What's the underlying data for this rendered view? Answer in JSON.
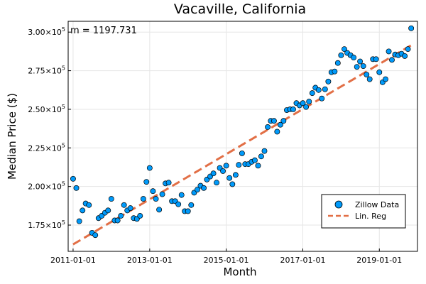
{
  "chart_data": {
    "type": "scatter",
    "title": "Vacaville, California",
    "xlabel": "Month",
    "ylabel": "Median Price ($)",
    "annotation": "m = 1197.731",
    "x_ticks": [
      "2011-01-01",
      "2013-01-01",
      "2015-01-01",
      "2017-01-01",
      "2019-01-01"
    ],
    "y_ticks": [
      {
        "value": 175000,
        "mantissa": "1.75",
        "exp": "5"
      },
      {
        "value": 200000,
        "mantissa": "2.00",
        "exp": "5"
      },
      {
        "value": 225000,
        "mantissa": "2.25",
        "exp": "5"
      },
      {
        "value": 250000,
        "mantissa": "2.50",
        "exp": "5"
      },
      {
        "value": 275000,
        "mantissa": "2.75",
        "exp": "5"
      },
      {
        "value": 300000,
        "mantissa": "3.00",
        "exp": "5"
      }
    ],
    "xlim": [
      "2010-11-15",
      "2019-12-31"
    ],
    "ylim": [
      158000,
      307000
    ],
    "grid": true,
    "legend_position": "bottom-right",
    "series": [
      {
        "name": "Zillow Data",
        "kind": "scatter",
        "color": "#009AFA",
        "x": [
          "2011-01-01",
          "2011-02-01",
          "2011-03-01",
          "2011-04-01",
          "2011-05-01",
          "2011-06-01",
          "2011-07-01",
          "2011-08-01",
          "2011-09-01",
          "2011-10-01",
          "2011-11-01",
          "2011-12-01",
          "2012-01-01",
          "2012-02-01",
          "2012-03-01",
          "2012-04-01",
          "2012-05-01",
          "2012-06-01",
          "2012-07-01",
          "2012-08-01",
          "2012-09-01",
          "2012-10-01",
          "2012-11-01",
          "2012-12-01",
          "2013-01-01",
          "2013-02-01",
          "2013-03-01",
          "2013-04-01",
          "2013-05-01",
          "2013-06-01",
          "2013-07-01",
          "2013-08-01",
          "2013-09-01",
          "2013-10-01",
          "2013-11-01",
          "2013-12-01",
          "2014-01-01",
          "2014-02-01",
          "2014-03-01",
          "2014-04-01",
          "2014-05-01",
          "2014-06-01",
          "2014-07-01",
          "2014-08-01",
          "2014-09-01",
          "2014-10-01",
          "2014-11-01",
          "2014-12-01",
          "2015-01-01",
          "2015-02-01",
          "2015-03-01",
          "2015-04-01",
          "2015-05-01",
          "2015-06-01",
          "2015-07-01",
          "2015-08-01",
          "2015-09-01",
          "2015-10-01",
          "2015-11-01",
          "2015-12-01",
          "2016-01-01",
          "2016-02-01",
          "2016-03-01",
          "2016-04-01",
          "2016-05-01",
          "2016-06-01",
          "2016-07-01",
          "2016-08-01",
          "2016-09-01",
          "2016-10-01",
          "2016-11-01",
          "2016-12-01",
          "2017-01-01",
          "2017-02-01",
          "2017-03-01",
          "2017-04-01",
          "2017-05-01",
          "2017-06-01",
          "2017-07-01",
          "2017-08-01",
          "2017-09-01",
          "2017-10-01",
          "2017-11-01",
          "2017-12-01",
          "2018-01-01",
          "2018-02-01",
          "2018-03-01",
          "2018-04-01",
          "2018-05-01",
          "2018-06-01",
          "2018-07-01",
          "2018-08-01",
          "2018-09-01",
          "2018-10-01",
          "2018-11-01",
          "2018-12-01",
          "2019-01-01",
          "2019-02-01",
          "2019-03-01",
          "2019-04-01",
          "2019-05-01",
          "2019-06-01",
          "2019-07-01",
          "2019-08-01",
          "2019-09-01",
          "2019-10-01",
          "2019-11-01"
        ],
        "y": [
          205000,
          199000,
          177500,
          184500,
          189000,
          188000,
          170000,
          168500,
          179500,
          181000,
          183000,
          184500,
          192000,
          178000,
          178000,
          181000,
          188000,
          184500,
          186000,
          179500,
          179000,
          181000,
          192000,
          203000,
          212000,
          197000,
          192000,
          185000,
          195000,
          202000,
          202500,
          190500,
          190500,
          188500,
          194500,
          184000,
          184000,
          188000,
          196000,
          198000,
          200500,
          199000,
          204500,
          206500,
          208500,
          202500,
          212000,
          210000,
          213500,
          205500,
          201500,
          207500,
          214000,
          221500,
          214500,
          214500,
          216000,
          217000,
          213500,
          219500,
          223000,
          238500,
          242500,
          242500,
          235500,
          240000,
          242500,
          249500,
          250000,
          250000,
          254000,
          252500,
          254000,
          251500,
          255000,
          260500,
          264000,
          262500,
          257000,
          263000,
          268000,
          274000,
          274500,
          280000,
          285000,
          289000,
          286500,
          285000,
          283500,
          277500,
          281000,
          278000,
          272500,
          269500,
          282500,
          282500,
          274000,
          267500,
          269500,
          287500,
          282000,
          285500,
          285000,
          286000,
          284500,
          289000,
          302500
        ]
      },
      {
        "name": "Lin. Reg",
        "kind": "line",
        "color": "#E26F46",
        "x": [
          "2011-01-01",
          "2019-11-01"
        ],
        "y": [
          162500,
          291500
        ]
      }
    ]
  }
}
